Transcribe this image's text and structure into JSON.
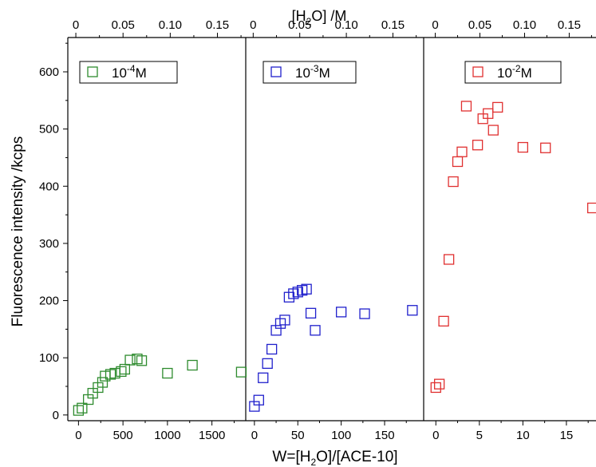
{
  "chart_data": {
    "type": "scatter",
    "ylabel": "Fluorescence intensity /kcps",
    "xlabel_bottom": {
      "pre": "W=[H",
      "sub": "2",
      "post": "O]/[ACE-10]"
    },
    "xlabel_top": {
      "pre": "[H",
      "sub": "2",
      "post": "O] /M"
    },
    "ylim": [
      -10,
      660
    ],
    "yticks": [
      0,
      100,
      200,
      300,
      400,
      500,
      600
    ],
    "panels": [
      {
        "xlim": [
          -120,
          1880
        ],
        "xticks": [
          0,
          500,
          1000,
          1500
        ],
        "top_xlim": [
          -0.0085,
          0.18
        ],
        "top_xticks": [
          0,
          0.05,
          0.1,
          0.15
        ],
        "top_xtick_labels": [
          "0",
          "0.05",
          "0.10",
          "0.15"
        ],
        "legend": {
          "base": "10",
          "exp": "-4",
          "unit": "M"
        },
        "color": "#2e8b2e",
        "x": [
          0,
          40,
          110,
          160,
          220,
          270,
          300,
          360,
          410,
          480,
          520,
          580,
          660,
          710,
          1000,
          1280,
          1830
        ],
        "y": [
          8,
          12,
          27,
          38,
          48,
          57,
          68,
          71,
          73,
          76,
          80,
          96,
          98,
          95,
          73,
          87,
          75
        ]
      },
      {
        "xlim": [
          -10,
          195
        ],
        "xticks": [
          0,
          50,
          100,
          150
        ],
        "top_xlim": [
          -0.008,
          0.183
        ],
        "top_xticks": [
          0,
          0.05,
          0.1,
          0.15
        ],
        "top_xtick_labels": [
          "0",
          "0.05",
          "0.10",
          "0.15"
        ],
        "legend": {
          "base": "10",
          "exp": "-3",
          "unit": "M"
        },
        "color": "#2020cc",
        "x": [
          0,
          5,
          10,
          15,
          20,
          25,
          30,
          35,
          40,
          45,
          50,
          55,
          60,
          65,
          70,
          100,
          127,
          182
        ],
        "y": [
          15,
          26,
          65,
          90,
          115,
          148,
          160,
          166,
          206,
          212,
          215,
          218,
          220,
          178,
          148,
          180,
          177,
          183
        ]
      },
      {
        "xlim": [
          -1.4,
          18.4
        ],
        "xticks": [
          0,
          5,
          10,
          15
        ],
        "top_xlim": [
          -0.013,
          0.18
        ],
        "top_xticks": [
          0,
          0.05,
          0.1,
          0.15
        ],
        "top_xtick_labels": [
          "0",
          "0.05",
          "0.10",
          "0.15"
        ],
        "legend": {
          "base": "10",
          "exp": "-2",
          "unit": "M"
        },
        "color": "#e03030",
        "x": [
          0,
          0.4,
          0.9,
          1.5,
          2.0,
          2.5,
          3.0,
          3.5,
          4.8,
          5.4,
          6.0,
          6.6,
          7.1,
          10.0,
          12.6,
          18.0
        ],
        "y": [
          48,
          54,
          164,
          272,
          408,
          443,
          460,
          540,
          472,
          518,
          527,
          498,
          538,
          468,
          467,
          362
        ]
      }
    ]
  }
}
